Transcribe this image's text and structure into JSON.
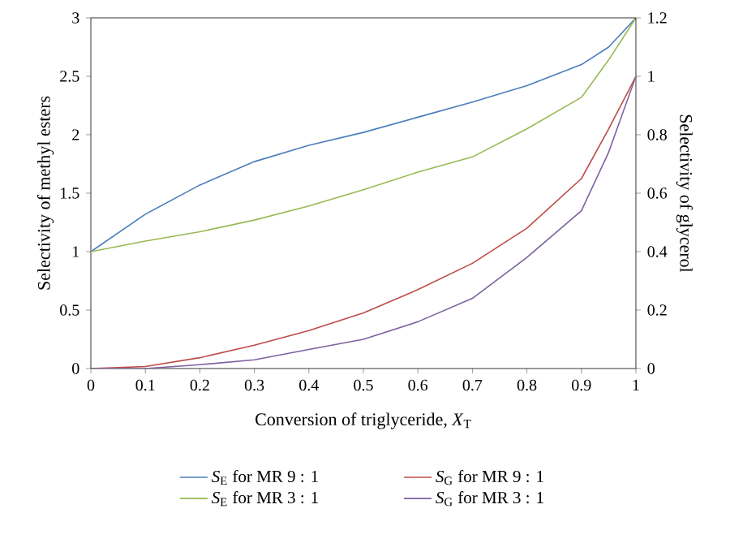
{
  "chart_data": {
    "type": "line",
    "xlabel": "Conversion of triglyceride, *X*$_{T}$",
    "ylabel": "Selectivity of methyl esters",
    "y2label": "Selectivity of glycerol",
    "x": [
      0,
      0.1,
      0.2,
      0.3,
      0.4,
      0.5,
      0.6,
      0.7,
      0.8,
      0.9,
      0.95,
      1
    ],
    "series": [
      {
        "name": "*S*$_{E}$ for MR 9 : 1",
        "color": "#4a7ebb",
        "values": [
          1,
          1.32,
          1.57,
          1.77,
          1.91,
          2.02,
          2.15,
          2.28,
          2.42,
          2.6,
          2.75,
          3
        ]
      },
      {
        "name": "*S*$_{E}$ for MR 3 : 1",
        "color": "#98b954",
        "values": [
          1,
          1.09,
          1.17,
          1.27,
          1.39,
          1.53,
          1.68,
          1.81,
          2.05,
          2.32,
          2.64,
          3
        ]
      },
      {
        "name": "*S*$_{G}$ for MR 9 : 1",
        "color": "#be4b48",
        "axis": "y2",
        "values": [
          0,
          0.007,
          0.037,
          0.08,
          0.13,
          0.19,
          0.27,
          0.36,
          0.48,
          0.65,
          0.82,
          1
        ]
      },
      {
        "name": "*S*$_{G}$ for MR 3 : 1",
        "color": "#7d60a0",
        "axis": "y2",
        "values": [
          0,
          0,
          0.013,
          0.03,
          0.065,
          0.1,
          0.16,
          0.24,
          0.38,
          0.54,
          0.74,
          1
        ]
      }
    ],
    "xlim": [
      0,
      1
    ],
    "xticks": [
      0,
      0.1,
      0.2,
      0.3,
      0.4,
      0.5,
      0.6,
      0.7,
      0.8,
      0.9,
      1
    ],
    "ylim": [
      0,
      3
    ],
    "yticks": [
      0,
      0.5,
      1,
      1.5,
      2,
      2.5,
      3
    ],
    "y2lim": [
      0,
      1.2
    ],
    "y2ticks": [
      0,
      0.2,
      0.4,
      0.6,
      0.8,
      1,
      1.2
    ],
    "grid": false,
    "legend": "bottom",
    "marker": "none",
    "line_style": "solid"
  }
}
